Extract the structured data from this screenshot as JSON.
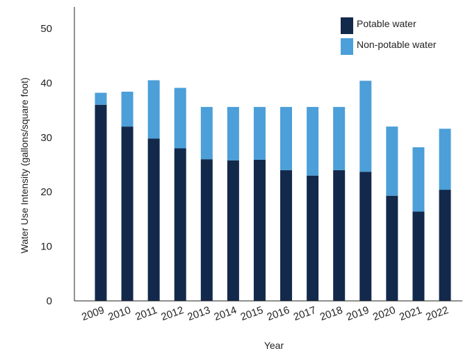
{
  "chart_data": {
    "type": "bar",
    "stacked": true,
    "title": "",
    "xlabel": "Year",
    "ylabel": "Water Use Intensity (gallons/square foot)",
    "ylim": [
      0,
      50
    ],
    "yticks": [
      0,
      10,
      20,
      30,
      40,
      50
    ],
    "grid": false,
    "legend_position": "top-right",
    "categories": [
      "2009",
      "2010",
      "2011",
      "2012",
      "2013",
      "2014",
      "2015",
      "2016",
      "2017",
      "2018",
      "2019",
      "2020",
      "2021",
      "2022"
    ],
    "series": [
      {
        "name": "Potable water",
        "color": "#13294b",
        "values": [
          36.0,
          32.0,
          29.8,
          28.0,
          26.0,
          25.8,
          25.9,
          24.0,
          23.0,
          24.0,
          23.7,
          19.3,
          16.4,
          20.4
        ]
      },
      {
        "name": "Non-potable water",
        "color": "#4c9fd8",
        "values": [
          2.2,
          6.4,
          10.7,
          11.1,
          9.6,
          9.8,
          9.7,
          11.6,
          12.6,
          11.6,
          16.7,
          12.7,
          11.8,
          11.2
        ]
      }
    ]
  }
}
